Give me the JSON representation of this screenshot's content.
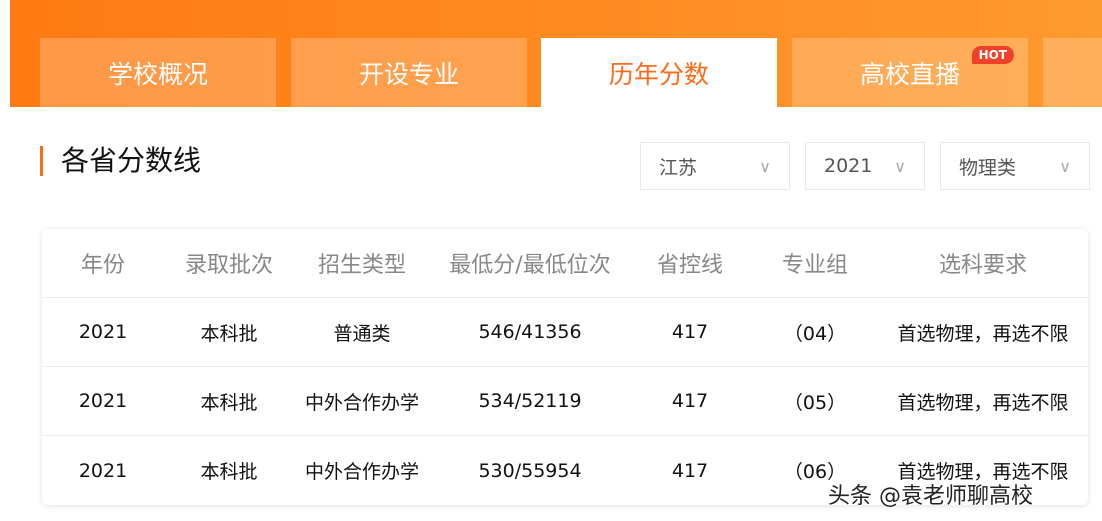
{
  "tabs": [
    {
      "label": "学校概况"
    },
    {
      "label": "开设专业"
    },
    {
      "label": "历年分数",
      "active": true
    },
    {
      "label": "高校直播",
      "badge": "HOT"
    },
    {
      "label": ""
    }
  ],
  "section_title": "各省分数线",
  "filters": {
    "province": "江苏",
    "year": "2021",
    "subject": "物理类"
  },
  "table": {
    "headers": [
      "年份",
      "录取批次",
      "招生类型",
      "最低分/最低位次",
      "省控线",
      "专业组",
      "选科要求"
    ],
    "rows": [
      [
        "2021",
        "本科批",
        "普通类",
        "546/41356",
        "417",
        "（04）",
        "首选物理，再选不限"
      ],
      [
        "2021",
        "本科批",
        "中外合作办学",
        "534/52119",
        "417",
        "（05）",
        "首选物理，再选不限"
      ],
      [
        "2021",
        "本科批",
        "中外合作办学",
        "530/55954",
        "417",
        "（06）",
        "首选物理，再选不限"
      ]
    ]
  },
  "watermark": "头条 @袁老师聊高校",
  "colors": {
    "accent": "#ff6a1a",
    "hot": "#f0402a"
  }
}
